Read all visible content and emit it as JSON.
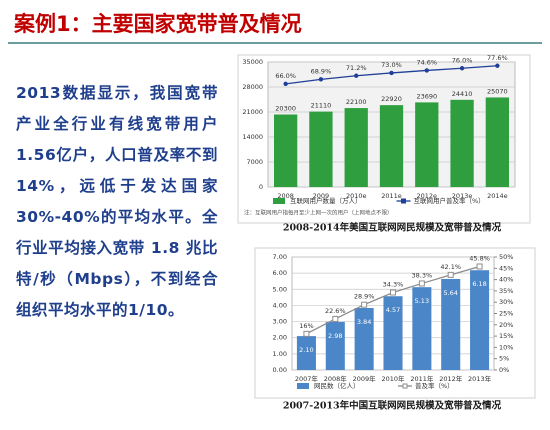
{
  "title": "案例1：主要国家宽带普及情况",
  "body": "2013数据显示，我国宽带产业全行业有线宽带用户1.56亿户，人口普及率不到14%，远低于发达国家30%-40%的平均水平。全行业平均接入宽带 1.8 兆比特/秒（Mbps），不到经合组织平均水平的1/10。",
  "chart_data": [
    {
      "type": "bar-line",
      "caption": "2008-2014年美国互联网网民规模及宽带普及情况",
      "note": "注：互联网用户指每月至少上网一次的用户（上网地点不限）",
      "categories": [
        "2008",
        "2009",
        "2010e",
        "2011e",
        "2012e",
        "2013e",
        "2014e"
      ],
      "series": [
        {
          "name": "互联网用户数量（万人）",
          "type": "bar",
          "color": "#2f9e3f",
          "values": [
            20300,
            21110,
            22100,
            22920,
            23690,
            24410,
            25070
          ]
        },
        {
          "name": "互联网用户普及率（%）",
          "type": "line",
          "axis": "y2",
          "color": "#1f3f99",
          "values": [
            66,
            68.9,
            71.2,
            73,
            74.6,
            76,
            77.6
          ],
          "value_labels": [
            "66.0%",
            "68.9%",
            "71.2%",
            "73.0%",
            "74.6%",
            "76.0%",
            "77.6%"
          ]
        }
      ],
      "ylim": [
        0,
        35000
      ],
      "yticks": [
        0,
        7000,
        14000,
        21000,
        28000,
        35000
      ],
      "y2lim": [
        0,
        80
      ],
      "grid": true
    },
    {
      "type": "bar-line",
      "caption": "2007-2013年中国互联网网民规模及宽带普及情况",
      "categories": [
        "2007年",
        "2008年",
        "2009年",
        "2010年",
        "2011年",
        "2012年",
        "2013年"
      ],
      "series": [
        {
          "name": "网民数（亿人）",
          "type": "bar",
          "color": "#4a86c8",
          "values": [
            2.1,
            2.98,
            3.84,
            4.57,
            5.13,
            5.64,
            6.18
          ],
          "value_labels": [
            "2.10",
            "2.98",
            "3.84",
            "4.57",
            "5.13",
            "5.64",
            "6.18"
          ]
        },
        {
          "name": "普及率（%）",
          "type": "line",
          "axis": "y2",
          "color": "#8c8c8c",
          "values": [
            16,
            22.6,
            28.9,
            34.3,
            38.3,
            42.1,
            45.8
          ],
          "value_labels": [
            "16%",
            "22.6%",
            "28.9%",
            "34.3%",
            "38.3%",
            "42.1%",
            "45.8%"
          ]
        }
      ],
      "ylim": [
        0,
        7
      ],
      "yticks": [
        {
          "value": 0,
          "label": "0.00"
        },
        {
          "value": 1,
          "label": "1.00"
        },
        {
          "value": 2,
          "label": "2.00"
        },
        {
          "value": 3,
          "label": "3.00"
        },
        {
          "value": 4,
          "label": "4.00"
        },
        {
          "value": 5,
          "label": "5.00"
        },
        {
          "value": 6,
          "label": "6.00"
        },
        {
          "value": 7,
          "label": "7.00"
        }
      ],
      "y2lim": [
        0,
        50
      ],
      "y2ticks": [
        {
          "value": 0,
          "label": "0%"
        },
        {
          "value": 5,
          "label": "5%"
        },
        {
          "value": 10,
          "label": "10%"
        },
        {
          "value": 15,
          "label": "15%"
        },
        {
          "value": 20,
          "label": "20%"
        },
        {
          "value": 25,
          "label": "25%"
        },
        {
          "value": 30,
          "label": "30%"
        },
        {
          "value": 35,
          "label": "35%"
        },
        {
          "value": 40,
          "label": "40%"
        },
        {
          "value": 45,
          "label": "45%"
        },
        {
          "value": 50,
          "label": "50%"
        }
      ],
      "grid": true
    }
  ]
}
